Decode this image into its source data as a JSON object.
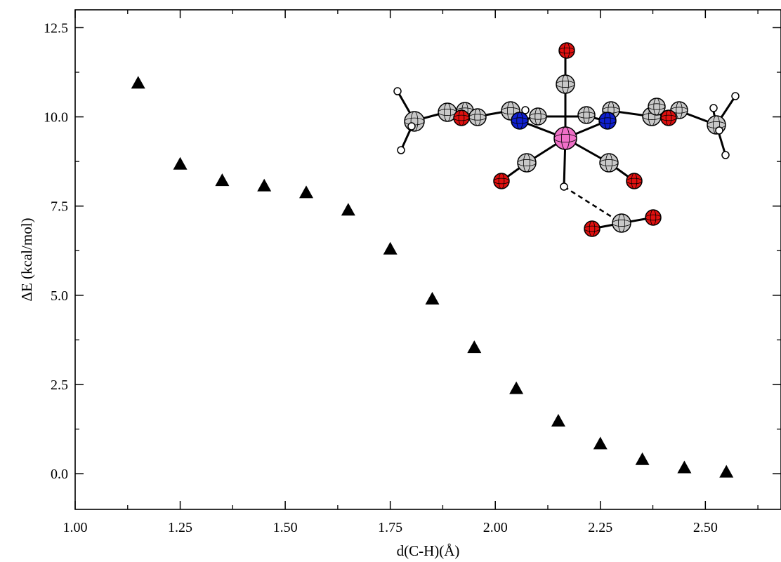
{
  "chart_data": {
    "type": "scatter",
    "xlabel": "d(C-H)(Å)",
    "ylabel": "ΔE (kcal/mol)",
    "xlim": [
      1.0,
      2.68
    ],
    "ylim": [
      -1.0,
      13.0
    ],
    "x_ticks": [
      1.0,
      1.25,
      1.5,
      1.75,
      2.0,
      2.25,
      2.5
    ],
    "x_tick_labels": [
      "1.00",
      "1.25",
      "1.50",
      "1.75",
      "2.00",
      "2.25",
      "2.50"
    ],
    "y_ticks": [
      0.0,
      2.5,
      5.0,
      7.5,
      10.0,
      12.5
    ],
    "y_tick_labels": [
      "0.0",
      "2.5",
      "5.0",
      "7.5",
      "10.0",
      "12.5"
    ],
    "grid": false,
    "marker": "triangle",
    "marker_color": "#000000",
    "x": [
      1.15,
      1.25,
      1.35,
      1.45,
      1.55,
      1.65,
      1.75,
      1.85,
      1.95,
      2.05,
      2.15,
      2.25,
      2.35,
      2.45,
      2.55
    ],
    "y": [
      10.95,
      8.68,
      8.22,
      8.07,
      7.88,
      7.39,
      6.3,
      4.9,
      3.54,
      2.39,
      1.48,
      0.84,
      0.4,
      0.17,
      0.05
    ]
  },
  "inset": {
    "colors": {
      "carbon": "#c8c8c8",
      "oxygen": "#e0100f",
      "nitrogen": "#1020d0",
      "metal": "#f070c8",
      "hydrogen": "#ffffff"
    }
  }
}
